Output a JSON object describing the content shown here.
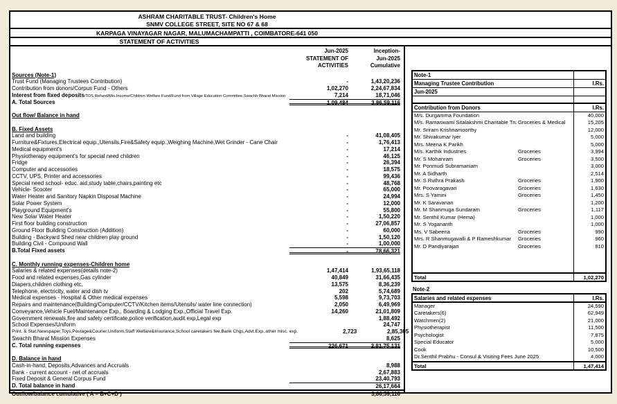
{
  "title": {
    "line1": "ASHRAM CHARITABLE TRUST-  Children's Home",
    "line2": "SNMV COLLEGE STREET, SITE NO 67 & 68",
    "line3": "KARPAGA VINAYAGAR NAGAR, MALUMACHAMPATTI , COIMBATORE-641 050",
    "line4": "STATEMENT OF ACTIVITIES"
  },
  "statement": {
    "col1_header": [
      "Jun-2025",
      "STATEMENT OF",
      "ACTIVITIES"
    ],
    "col2_header": [
      "Inception-",
      "Jun-2025",
      "Cumulative"
    ],
    "rows": [
      {
        "t": "sec",
        "label": "Sources (Note-1)"
      },
      {
        "t": "item",
        "label": "Trust Fund (Managing Trustees Contribution)",
        "jun": "-",
        "cum": "1,43,20,236"
      },
      {
        "t": "item",
        "label": "Contribution from donors/Corpus Fund - Others",
        "jun": "1,02,270",
        "cum": "2,24,67,834"
      },
      {
        "t": "item",
        "label": "Interest from fixed deposits",
        "bold_label": true,
        "small": "/TDS Refund/Mis.Income/Children Welfare Fund/Fund from Village Education Committee,Swachh Bharat Mission",
        "jun": "7,214",
        "cum": "18,71,046"
      },
      {
        "t": "total",
        "label": "A. Total Sources",
        "jun": "1,09,484",
        "cum": "3,86,59,116"
      },
      {
        "t": "blank"
      },
      {
        "t": "sec",
        "label": "Out flow/ Balance in hand"
      },
      {
        "t": "blank"
      },
      {
        "t": "sec",
        "label": "B. Fixed Assets"
      },
      {
        "t": "item",
        "label": "Land and building",
        "jun": "-",
        "cum": "41,08,405"
      },
      {
        "t": "item",
        "label": "Furniture&Fixtures,Electrical equip.,Utensils,Fire&Safety equip.,Weighing Machine,Wet Grinder - Cane Chair",
        "jun": "-",
        "cum": "1,76,413"
      },
      {
        "t": "item",
        "label": "Medical equipment's",
        "jun": "-",
        "cum": "17,214"
      },
      {
        "t": "item",
        "label": "Physiotherapy equipment's for special need children",
        "jun": "-",
        "cum": "46,125"
      },
      {
        "t": "item",
        "label": "Fridge",
        "jun": "-",
        "cum": "26,394"
      },
      {
        "t": "item",
        "label": "Computer and accessories",
        "jun": "-",
        "cum": "18,575"
      },
      {
        "t": "item",
        "label": "CCTV, UPS, Printer and accessories",
        "jun": "-",
        "cum": "99,436"
      },
      {
        "t": "item",
        "label": "Special need school- educ. aid,study table,chairs,painting etc",
        "jun": "-",
        "cum": "48,768"
      },
      {
        "t": "item",
        "label": "Vehicle- Scooter",
        "jun": "-",
        "cum": "65,000"
      },
      {
        "t": "item",
        "label": "Water Heater and Sanitory Napkin Disposal Machine",
        "jun": "-",
        "cum": "24,994"
      },
      {
        "t": "item",
        "label": "Solar Power System",
        "jun": "-",
        "cum": "12,000"
      },
      {
        "t": "item",
        "label": "Playground Equipment's",
        "jun": "-",
        "cum": "55,800"
      },
      {
        "t": "item",
        "label": "New Solar Water Heater",
        "jun": "-",
        "cum": "1,50,220"
      },
      {
        "t": "item",
        "label": "First floor building construction",
        "jun": "-",
        "cum": "27,06,857"
      },
      {
        "t": "item",
        "label": "Ground Floor Building Construction (Addition)",
        "jun": "-",
        "cum": "60,000"
      },
      {
        "t": "item",
        "label": "Building - Backyard Shed near children play ground",
        "jun": "-",
        "cum": "1,50,120"
      },
      {
        "t": "item",
        "label": "Building Civil - Compound Wall",
        "jun": "-",
        "cum": "1,00,000"
      },
      {
        "t": "total",
        "label": "B.Total Fixed assets",
        "jun": "-",
        "cum": "78,66,321"
      },
      {
        "t": "blank"
      },
      {
        "t": "sec",
        "label": "C. Monthly running expenses-Children home"
      },
      {
        "t": "item",
        "label": "Salaries & related expenses(details note-2)",
        "jun": "1,47,414",
        "cum": "1,93,65,118"
      },
      {
        "t": "item",
        "label": "Food and related expenses,Gas cylinder",
        "jun": "40,849",
        "cum": "31,66,435"
      },
      {
        "t": "item",
        "label": "Diapers,children clothing etc.",
        "jun": "13,575",
        "cum": "8,36,239"
      },
      {
        "t": "item",
        "label": "Telephone, electricity, water and dish tv",
        "jun": "202",
        "cum": "5,74,689"
      },
      {
        "t": "item",
        "label": "Medical expenses - Hospital & Other medical expenses",
        "jun": "5,598",
        "cum": "9,73,703"
      },
      {
        "t": "item",
        "label": "Repairs and maintenance(Building/Computer/CCTV/Kitchen items/Utensils/ water line connection)",
        "jun": "2,050",
        "cum": "6,49,969"
      },
      {
        "t": "item",
        "label": "Conveyance,Vehicle Fuel/Maintenance Exp., Boarding & Lodging Exp.,Official Travel Exp.",
        "jun": "14,260",
        "cum": "21,01,809"
      },
      {
        "t": "item",
        "label": "Government renewals,fire and safety certificate,police verification,audit exp,Legal exp",
        "jun": "",
        "cum": "1,88,492"
      },
      {
        "t": "item",
        "label": "School Expenses/Uniform",
        "jun": "",
        "cum": "24,747"
      },
      {
        "t": "item",
        "label": "Print. & Stat,Newspaper,Toys,Postage&Courier,Uniform,Staff Welfare&Insurance,School caretakers fee,Bank Chgs,Advt.Exp.,other misc. exp.",
        "smallfont": true,
        "jun": "2,723",
        "cum": "2,85,305"
      },
      {
        "t": "item",
        "label": "Swachh Bharat Mission Expenses",
        "jun": "",
        "cum": "8,625"
      },
      {
        "t": "total",
        "label": "C. Total running expenses",
        "jun": "226,671",
        "cum": "2,81,75,131"
      },
      {
        "t": "blank"
      },
      {
        "t": "sec",
        "label": "D. Balance in hand"
      },
      {
        "t": "item",
        "label": "Cash-in-hand, Deposits,Advances and Accruals",
        "jun": "",
        "cum": "8,988"
      },
      {
        "t": "item",
        "label": "Bank - current account - net of accruals",
        "jun": "",
        "cum": "2,67,883"
      },
      {
        "t": "item",
        "label": "Fixed Deposit & General Corpus Fund",
        "jun": "",
        "cum": "23,40,793"
      },
      {
        "t": "total2",
        "label": "D. Total balance in hand",
        "jun": "",
        "cum": "26,17,664"
      },
      {
        "t": "grand",
        "label": "Outflow/balance cumulative ( A = B+C+D )",
        "jun": "",
        "cum": "3,86,59,116"
      }
    ]
  },
  "note1": {
    "title": "Note-1",
    "managing_label": "Managing Trustee Contribution",
    "currency": "I.Rs.",
    "period": "Jun-2025",
    "donors_header": "Contribution from Donors",
    "donors": [
      {
        "name": "M/s. Durgamma Foundation",
        "cat": "",
        "amt": "40,000"
      },
      {
        "name": "M/s. Ramaswami Sitalakshmi Charitable Trust",
        "cat": "Groceries & Medical",
        "amt": "15,205"
      },
      {
        "name": "Mr. Sriram Krishnamoorthy",
        "cat": "",
        "amt": "12,000"
      },
      {
        "name": "Mr. Shivakumar Iyer",
        "cat": "",
        "amt": "5,000"
      },
      {
        "name": "Mrs. Meena K Parikh",
        "cat": "",
        "amt": "5,000"
      },
      {
        "name": "M/s. Karthik Industries",
        "cat": "Groceries",
        "amt": "3,994"
      },
      {
        "name": "Mr. S Mohanram",
        "cat": "Groceries",
        "amt": "3,500"
      },
      {
        "name": "Mr. Ponmudi Subramaniam",
        "cat": "",
        "amt": "3,000"
      },
      {
        "name": "Mr. A Sidharth",
        "cat": "",
        "amt": "2,514"
      },
      {
        "name": "Mr. S Ruthra Prakash",
        "cat": "Groceries",
        "amt": "1,900"
      },
      {
        "name": "Mr. Poovaragavan",
        "cat": "Groceries",
        "amt": "1,630"
      },
      {
        "name": "Mrs. S Yamini",
        "cat": "Groceries",
        "amt": "1,450"
      },
      {
        "name": "Mr. K Saravanan",
        "cat": "",
        "amt": "1,200"
      },
      {
        "name": "Mr. M Shanmuga Sundaram",
        "cat": "Groceries",
        "amt": "1,117"
      },
      {
        "name": "Mr. Senthil Kumar (Hema)",
        "cat": "",
        "amt": "1,000"
      },
      {
        "name": "Mr. S Yogananth",
        "cat": "",
        "amt": "1,000"
      },
      {
        "name": "Ms. V Sabeena",
        "cat": "Groceries",
        "amt": "990"
      },
      {
        "name": "Mrs. R Shanmugavalli & P Rameshkumar",
        "cat": "Groceries",
        "amt": "960"
      },
      {
        "name": "Mr. D Pandiyarajan",
        "cat": "Groceries",
        "amt": "810"
      }
    ],
    "total_label": "Total",
    "total_value": "1,02,270"
  },
  "note2": {
    "title": "Note-2",
    "header": "Salaries and related expenses",
    "currency": "I.Rs.",
    "rows": [
      {
        "name": "Manager",
        "amt": "24,590"
      },
      {
        "name": "Caretakers(6)",
        "amt": "62,949"
      },
      {
        "name": "Watchmen(2)",
        "amt": "21,000"
      },
      {
        "name": "Physiotherapist",
        "amt": "11,500"
      },
      {
        "name": "Psychologist",
        "amt": "7,875"
      },
      {
        "name": "Special Educator",
        "amt": "5,000"
      },
      {
        "name": "Cook",
        "amt": "10,500"
      },
      {
        "name": "Dr.Senthil Prabhu - Consul & Visiting Fees June 2025",
        "amt": "4,000"
      }
    ],
    "total_label": "Total",
    "total_value": "1,47,414"
  }
}
